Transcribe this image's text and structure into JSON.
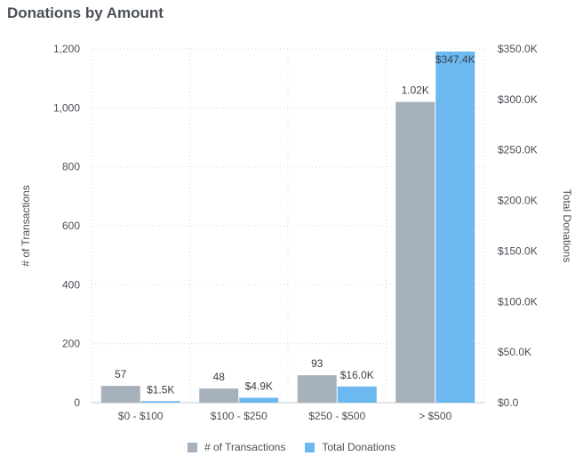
{
  "chart_data": {
    "type": "bar",
    "title": "Donations by Amount",
    "categories": [
      "$0 - $100",
      "$100 - $250",
      "$250 - $500",
      "> $500"
    ],
    "series": [
      {
        "name": "# of Transactions",
        "axis": "left",
        "color": "#a6b1bb",
        "values": [
          57,
          48,
          93,
          1020
        ],
        "labels": [
          "57",
          "48",
          "93",
          "1.02K"
        ]
      },
      {
        "name": "Total Donations",
        "axis": "right",
        "color": "#6cb9f2",
        "values": [
          1500,
          4900,
          16000,
          347400
        ],
        "labels": [
          "$1.5K",
          "$4.9K",
          "$16.0K",
          "$347.4K"
        ]
      }
    ],
    "ylabel": "# of Transactions",
    "ylabel_right": "Total Donations",
    "ylim": [
      0,
      1200
    ],
    "ylim_right": [
      0,
      350000
    ],
    "yticks": [
      "0",
      "200",
      "400",
      "600",
      "800",
      "1,000",
      "1,200"
    ],
    "yticks_right": [
      "$0.0",
      "$50.0K",
      "$100.0K",
      "$150.0K",
      "$200.0K",
      "$250.0K",
      "$300.0K",
      "$350.0K"
    ],
    "grid": true,
    "legend_position": "bottom"
  }
}
